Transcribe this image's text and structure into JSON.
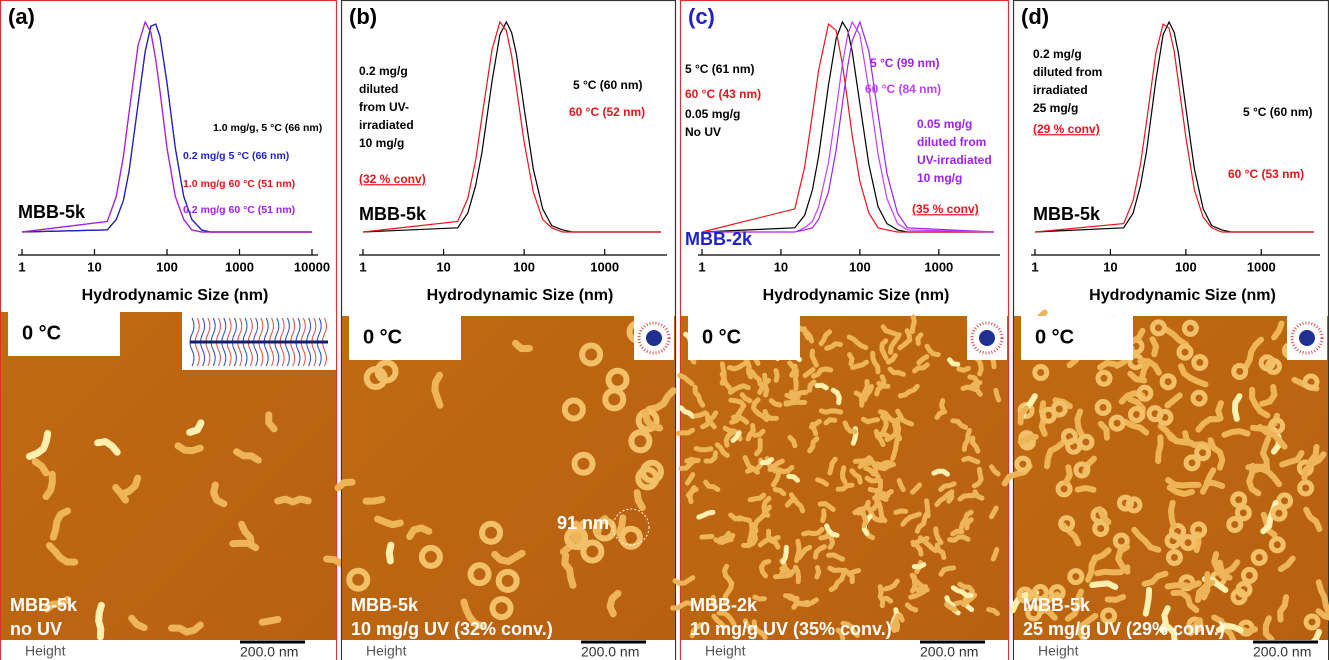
{
  "chart_data": [
    {
      "type": "line",
      "panel_label": "(a)",
      "xlabel": "Hydrodynamic Size (nm)",
      "xscale": "log",
      "xlim": [
        1,
        10000
      ],
      "xticks": [
        1,
        10,
        100,
        1000,
        10000
      ],
      "ylim": [
        0,
        1
      ],
      "x": [
        1,
        15,
        20,
        25,
        30,
        40,
        50,
        60,
        70,
        80,
        100,
        130,
        170,
        220,
        300,
        400,
        10000
      ],
      "series": [
        {
          "name": "1.0 mg/g, 5 °C (66 nm)",
          "color": "#000000",
          "values": [
            0,
            0.01,
            0.06,
            0.15,
            0.29,
            0.61,
            0.86,
            0.98,
            0.99,
            0.93,
            0.71,
            0.4,
            0.17,
            0.06,
            0.01,
            0,
            0
          ]
        },
        {
          "name": "0.2 mg/g 5 °C (66 nm)",
          "color": "#2222cc",
          "values": [
            0,
            0.01,
            0.06,
            0.15,
            0.29,
            0.61,
            0.86,
            0.98,
            0.99,
            0.93,
            0.71,
            0.4,
            0.17,
            0.06,
            0.01,
            0,
            0
          ]
        },
        {
          "name": "1.0 mg/g 60 °C (51 nm)",
          "color": "#e8141c",
          "values": [
            0,
            0.05,
            0.17,
            0.36,
            0.57,
            0.89,
            1.0,
            0.95,
            0.82,
            0.67,
            0.4,
            0.17,
            0.06,
            0.01,
            0,
            0,
            0
          ]
        },
        {
          "name": "0.2 mg/g 60 °C (51 nm)",
          "color": "#a020f0",
          "values": [
            0,
            0.05,
            0.17,
            0.36,
            0.57,
            0.89,
            1.0,
            0.95,
            0.82,
            0.67,
            0.4,
            0.17,
            0.06,
            0.01,
            0,
            0,
            0
          ]
        }
      ],
      "notes": [],
      "conv": null,
      "sample": {
        "text": "MBB-5k",
        "color": "#000000"
      }
    },
    {
      "type": "line",
      "panel_label": "(b)",
      "xlabel": "Hydrodynamic Size (nm)",
      "xscale": "log",
      "xlim": [
        1,
        5000
      ],
      "xticks": [
        1,
        10,
        100,
        1000
      ],
      "ylim": [
        0,
        1
      ],
      "x": [
        1,
        15,
        20,
        25,
        30,
        40,
        50,
        60,
        70,
        80,
        100,
        130,
        170,
        220,
        300,
        400,
        5000
      ],
      "series": [
        {
          "name": "5 °C (60 nm)",
          "color": "#000000",
          "values": [
            0,
            0.02,
            0.09,
            0.22,
            0.38,
            0.72,
            0.94,
            1.0,
            0.95,
            0.85,
            0.59,
            0.3,
            0.11,
            0.03,
            0.01,
            0,
            0
          ]
        },
        {
          "name": "60 °C (52 nm)",
          "color": "#e8141c",
          "values": [
            0,
            0.05,
            0.16,
            0.34,
            0.55,
            0.87,
            1.0,
            0.96,
            0.84,
            0.69,
            0.43,
            0.19,
            0.06,
            0.02,
            0,
            0,
            0
          ]
        }
      ],
      "notes": [
        {
          "lines": [
            "0.2 mg/g",
            "diluted",
            "from UV-",
            "irradiated",
            "10 mg/g"
          ],
          "color": "#000000"
        }
      ],
      "conv": "(32 % conv)",
      "sample": {
        "text": "MBB-5k",
        "color": "#000000"
      }
    },
    {
      "type": "line",
      "panel_label": "(c)",
      "xlabel": "Hydrodynamic Size (nm)",
      "xscale": "log",
      "xlim": [
        1,
        5000
      ],
      "xticks": [
        1,
        10,
        100,
        1000
      ],
      "ylim": [
        0,
        1
      ],
      "x": [
        1,
        15,
        20,
        25,
        30,
        40,
        50,
        60,
        70,
        80,
        100,
        130,
        170,
        220,
        300,
        400,
        5000
      ],
      "series": [
        {
          "name": "5 °C (61 nm)",
          "color": "#000000",
          "values": [
            0,
            0.02,
            0.08,
            0.2,
            0.36,
            0.7,
            0.92,
            1.0,
            0.96,
            0.86,
            0.61,
            0.32,
            0.12,
            0.04,
            0.01,
            0,
            0
          ]
        },
        {
          "name": "60 °C (43 nm)",
          "color": "#e8141c",
          "values": [
            0,
            0.11,
            0.31,
            0.56,
            0.77,
            0.99,
            0.96,
            0.8,
            0.62,
            0.46,
            0.24,
            0.09,
            0.02,
            0.01,
            0,
            0,
            0
          ]
        },
        {
          "name": "5 °C (99 nm)",
          "color": "#a020f0",
          "values": [
            0,
            0,
            0.01,
            0.02,
            0.06,
            0.19,
            0.39,
            0.61,
            0.79,
            0.91,
            1.0,
            0.86,
            0.56,
            0.28,
            0.09,
            0.02,
            0
          ]
        },
        {
          "name": "60 °C (84 nm)",
          "color": "#c040ff",
          "values": [
            0,
            0,
            0.02,
            0.05,
            0.12,
            0.33,
            0.58,
            0.8,
            0.94,
            1.0,
            0.94,
            0.68,
            0.37,
            0.16,
            0.04,
            0.01,
            0
          ]
        }
      ],
      "notes": [
        {
          "lines": [
            "0.05 mg/g",
            "No UV"
          ],
          "color": "#000000"
        },
        {
          "lines": [
            "0.05 mg/g",
            "diluted from",
            "UV-irradiated",
            "10 mg/g"
          ],
          "color": "#a020f0"
        }
      ],
      "conv": "(35 % conv)",
      "sample": {
        "text": "MBB-2k",
        "color": "#2222cc"
      }
    },
    {
      "type": "line",
      "panel_label": "(d)",
      "xlabel": "Hydrodynamic Size (nm)",
      "xscale": "log",
      "xlim": [
        1,
        5000
      ],
      "xticks": [
        1,
        10,
        100,
        1000
      ],
      "ylim": [
        0,
        1
      ],
      "x": [
        1,
        15,
        20,
        25,
        30,
        40,
        50,
        60,
        70,
        80,
        100,
        130,
        170,
        220,
        300,
        400,
        5000
      ],
      "series": [
        {
          "name": "5 °C (60 nm)",
          "color": "#000000",
          "values": [
            0,
            0.02,
            0.09,
            0.22,
            0.38,
            0.72,
            0.94,
            1.0,
            0.95,
            0.85,
            0.59,
            0.3,
            0.11,
            0.03,
            0.01,
            0,
            0
          ]
        },
        {
          "name": "60 °C (53 nm)",
          "color": "#e8141c",
          "values": [
            0,
            0.04,
            0.15,
            0.32,
            0.52,
            0.85,
            0.99,
            0.97,
            0.86,
            0.71,
            0.45,
            0.2,
            0.07,
            0.02,
            0,
            0,
            0
          ]
        }
      ],
      "notes": [
        {
          "lines": [
            "0.2 mg/g",
            "diluted from",
            "irradiated",
            "25 mg/g"
          ],
          "color": "#000000"
        }
      ],
      "conv": "(29 % conv)",
      "sample": {
        "text": "MBB-5k",
        "color": "#000000"
      }
    }
  ],
  "images": [
    {
      "temperature": "0 °C",
      "lines": [
        "MBB-5k",
        "no UV"
      ],
      "channel": "Height",
      "scale_bar": "200.0 nm"
    },
    {
      "temperature": "0 °C",
      "lines": [
        "MBB-5k",
        "10 mg/g UV (32% conv.)"
      ],
      "channel": "Height",
      "scale_bar": "200.0 nm",
      "marker": "91 nm"
    },
    {
      "temperature": "0 °C",
      "lines": [
        "MBB-2k",
        "10 mg/g UV (35% conv.)"
      ],
      "channel": "Height",
      "scale_bar": "200.0 nm"
    },
    {
      "temperature": "0 °C",
      "lines": [
        "MBB-5k",
        "25 mg/g UV (29% conv.)"
      ],
      "channel": "Height",
      "scale_bar": "200.0 nm"
    }
  ]
}
